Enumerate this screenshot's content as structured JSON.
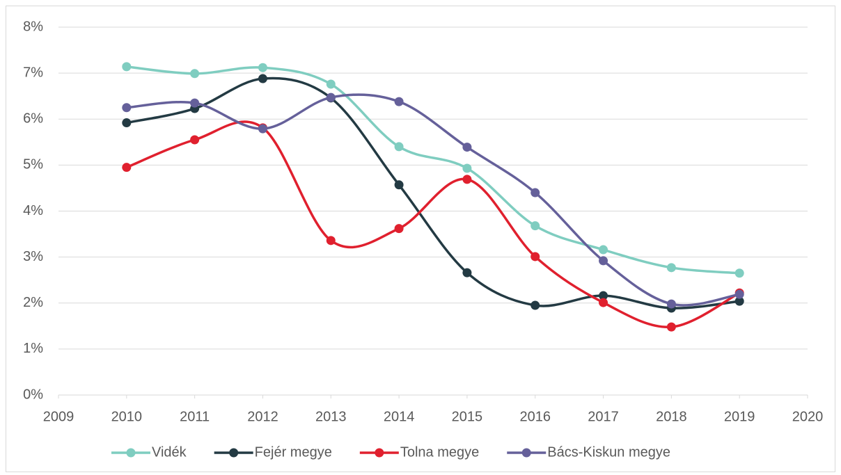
{
  "chart_data": {
    "type": "line",
    "x": [
      2010,
      2011,
      2012,
      2013,
      2014,
      2015,
      2016,
      2017,
      2018,
      2019
    ],
    "series": [
      {
        "name": "Vidék",
        "color": "#7fcdc0",
        "values": [
          7.14,
          6.99,
          7.12,
          6.76,
          5.4,
          4.93,
          3.68,
          3.16,
          2.77,
          2.65
        ]
      },
      {
        "name": "Fejér megye",
        "color": "#233a43",
        "values": [
          5.92,
          6.23,
          6.88,
          6.46,
          4.57,
          2.66,
          1.95,
          2.16,
          1.89,
          2.04
        ]
      },
      {
        "name": "Tolna megye",
        "color": "#e0202e",
        "values": [
          4.95,
          5.55,
          5.81,
          3.36,
          3.62,
          4.69,
          3.01,
          2.01,
          1.48,
          2.22
        ]
      },
      {
        "name": "Bács-Kiskun megye",
        "color": "#65609a",
        "values": [
          6.25,
          6.35,
          5.79,
          6.47,
          6.38,
          5.39,
          4.4,
          2.92,
          1.98,
          2.19
        ]
      }
    ],
    "xlim": [
      2009,
      2020
    ],
    "xticks": [
      2009,
      2010,
      2011,
      2012,
      2013,
      2014,
      2015,
      2016,
      2017,
      2018,
      2019,
      2020
    ],
    "ylim": [
      0,
      8
    ],
    "yticks": [
      {
        "value": 0,
        "label": "0%"
      },
      {
        "value": 1,
        "label": "1%"
      },
      {
        "value": 2,
        "label": "2%"
      },
      {
        "value": 3,
        "label": "3%"
      },
      {
        "value": 4,
        "label": "4%"
      },
      {
        "value": 5,
        "label": "5%"
      },
      {
        "value": 6,
        "label": "6%"
      },
      {
        "value": 7,
        "label": "7%"
      },
      {
        "value": 8,
        "label": "8%"
      }
    ],
    "grid": true,
    "smooth": true,
    "legend": "bottom"
  }
}
